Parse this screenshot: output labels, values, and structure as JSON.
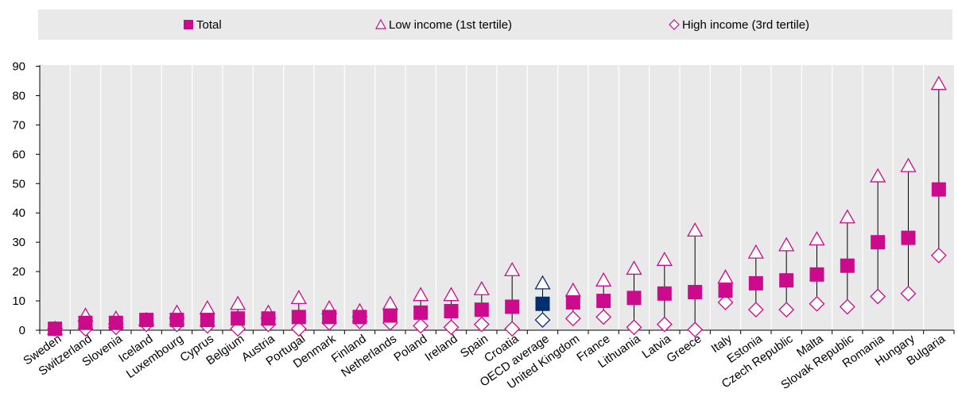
{
  "chart_data": {
    "type": "scatter",
    "title": "",
    "xlabel": "",
    "ylabel": "",
    "ylim": [
      0,
      90
    ],
    "yticks": [
      0,
      10,
      20,
      30,
      40,
      50,
      60,
      70,
      80,
      90
    ],
    "grid": "vertical separators",
    "legend_position": "top",
    "colors": {
      "magenta": "#cc0a8c",
      "navy": "#002f6c",
      "panel": "#e9e9e9",
      "grid": "#ffffff",
      "whisker": "#000000"
    },
    "categories": [
      "Sweden",
      "Switzerland",
      "Slovenia",
      "Iceland",
      "Luxembourg",
      "Cyprus",
      "Belgium",
      "Austria",
      "Portugal",
      "Denmark",
      "Finland",
      "Netherlands",
      "Poland",
      "Ireland",
      "Spain",
      "Croatia",
      "OECD average",
      "United Kingdom",
      "France",
      "Lithuania",
      "Latvia",
      "Greece",
      "Italy",
      "Estonia",
      "Czech Republic",
      "Malta",
      "Slovak Republic",
      "Romania",
      "Hungary",
      "Bulgaria"
    ],
    "highlight_category": "OECD average",
    "series": [
      {
        "name": "Total",
        "marker": "square",
        "values": [
          0.5,
          2.5,
          2.5,
          3.5,
          3.5,
          3.5,
          4,
          4,
          4.5,
          4.5,
          4.5,
          5,
          6,
          6.5,
          7,
          8,
          9,
          9.5,
          10,
          11,
          12.5,
          13,
          13.5,
          16,
          17,
          19,
          22,
          30,
          31.5,
          48
        ]
      },
      {
        "name": "Low income (1st tertile)",
        "marker": "triangle",
        "values": [
          0.5,
          5,
          4,
          3.5,
          6,
          7.5,
          9,
          6,
          11,
          7.5,
          6.5,
          9,
          12,
          12,
          14,
          20.5,
          16,
          13.5,
          17,
          21,
          24,
          34,
          18,
          26.5,
          29,
          31,
          38.5,
          52.5,
          56,
          84
        ]
      },
      {
        "name": "High income (3rd tertile)",
        "marker": "diamond",
        "values": [
          0.5,
          0.5,
          1,
          2,
          2,
          1.5,
          0.5,
          2,
          0.5,
          2.5,
          3,
          2.5,
          1.5,
          1,
          2,
          0.5,
          3.5,
          4,
          4.5,
          1,
          2,
          0.2,
          9.5,
          7,
          7,
          9,
          8,
          11.5,
          12.5,
          25.5
        ]
      }
    ]
  }
}
